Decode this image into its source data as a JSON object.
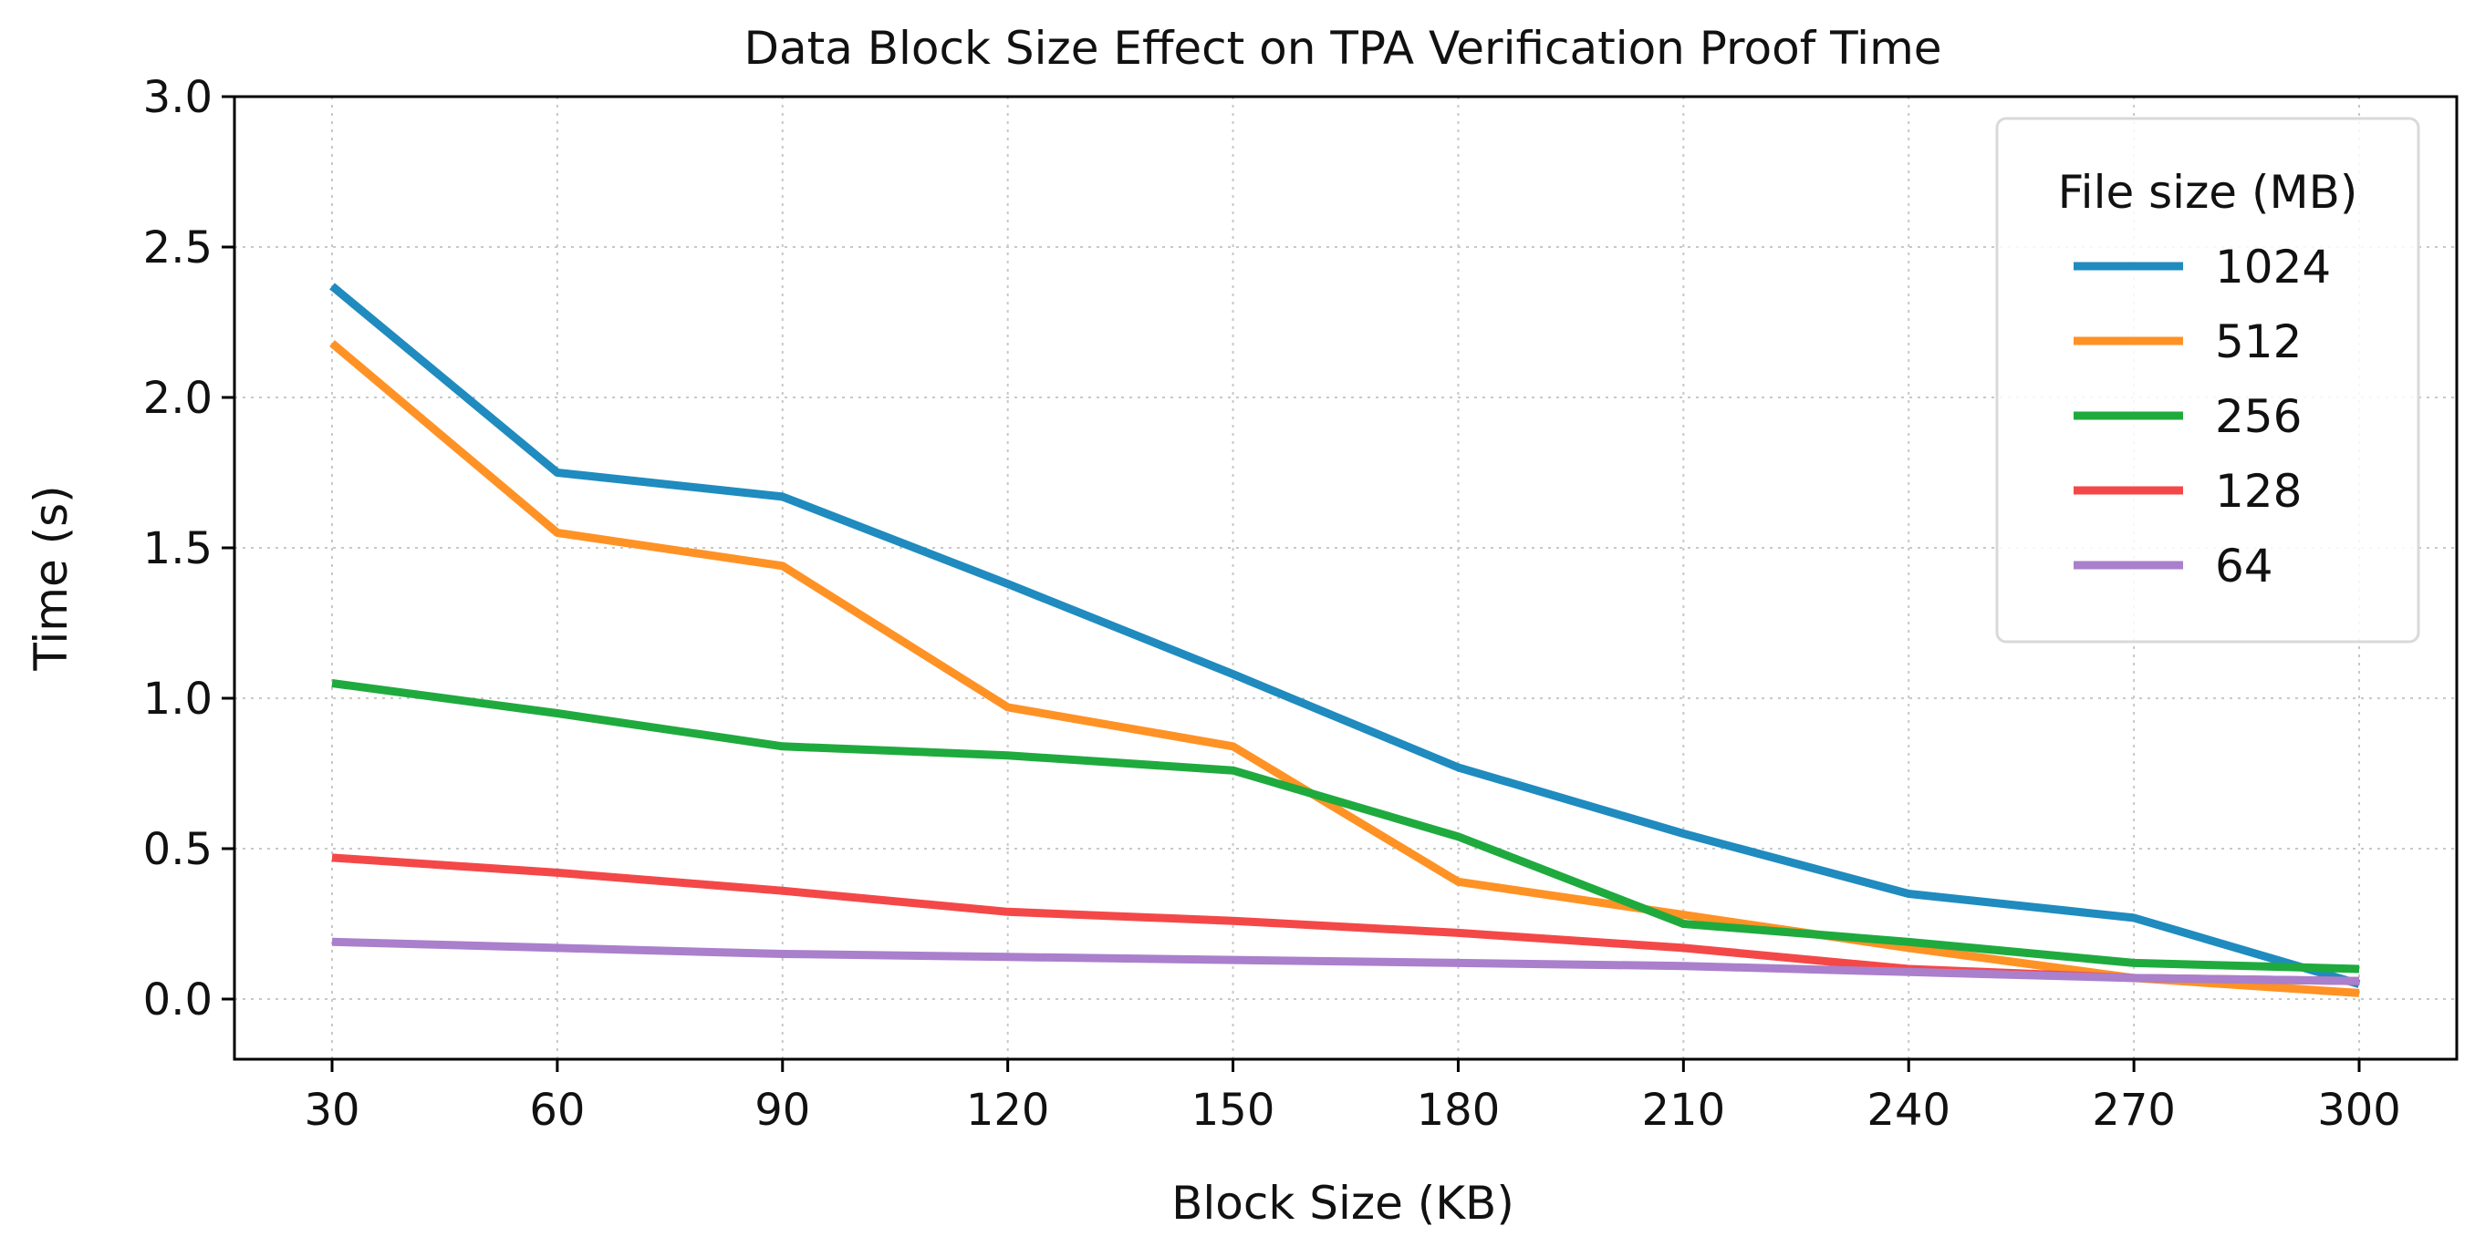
{
  "chart_data": {
    "type": "line",
    "title": "Data Block Size Effect on TPA Verification Proof Time",
    "xlabel": "Block Size (KB)",
    "ylabel": "Time (s)",
    "x": [
      30,
      60,
      90,
      120,
      150,
      180,
      210,
      240,
      270,
      300
    ],
    "x_tick_labels": [
      "30",
      "60",
      "90",
      "120",
      "150",
      "180",
      "210",
      "240",
      "270",
      "300"
    ],
    "xlim": [
      17,
      313
    ],
    "ylim": [
      -0.2,
      3.0
    ],
    "y_ticks": [
      0.0,
      0.5,
      1.0,
      1.5,
      2.0,
      2.5,
      3.0
    ],
    "y_tick_labels": [
      "0.0",
      "0.5",
      "1.0",
      "1.5",
      "2.0",
      "2.5",
      "3.0"
    ],
    "grid": true,
    "legend": {
      "title": "File size (MB)",
      "placement": "top-right"
    },
    "series": [
      {
        "name": "1024",
        "color": "#1f8bbf",
        "values": [
          2.37,
          1.75,
          1.67,
          1.38,
          1.08,
          0.77,
          0.55,
          0.35,
          0.27,
          0.05
        ]
      },
      {
        "name": "512",
        "color": "#ff9225",
        "values": [
          2.18,
          1.55,
          1.44,
          0.97,
          0.84,
          0.39,
          0.28,
          0.17,
          0.07,
          0.02
        ]
      },
      {
        "name": "256",
        "color": "#1faa3e",
        "values": [
          1.05,
          0.95,
          0.84,
          0.81,
          0.76,
          0.54,
          0.25,
          0.19,
          0.12,
          0.1
        ]
      },
      {
        "name": "128",
        "color": "#f44848",
        "values": [
          0.47,
          0.42,
          0.36,
          0.29,
          0.26,
          0.22,
          0.17,
          0.1,
          0.07,
          0.06
        ]
      },
      {
        "name": "64",
        "color": "#aa7fcc",
        "values": [
          0.19,
          0.17,
          0.15,
          0.14,
          0.13,
          0.12,
          0.11,
          0.09,
          0.07,
          0.06
        ]
      }
    ]
  }
}
